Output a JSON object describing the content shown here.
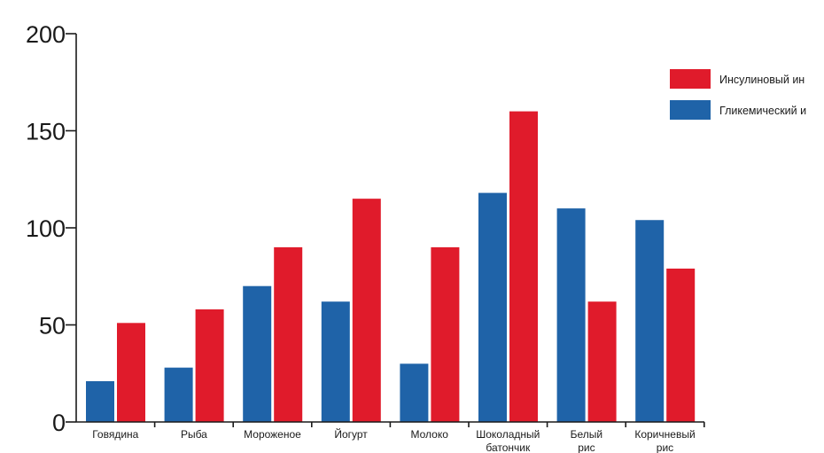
{
  "chart_data": {
    "type": "bar",
    "title": "",
    "xlabel": "",
    "ylabel": "",
    "ylim": [
      0,
      200
    ],
    "yticks": [
      0,
      50,
      100,
      150,
      200
    ],
    "grid": false,
    "legend_position": "top-right",
    "categories": [
      [
        "Говядина"
      ],
      [
        "Рыба"
      ],
      [
        "Мороженое"
      ],
      [
        "Йогурт"
      ],
      [
        "Молоко"
      ],
      [
        "Шоколадный",
        "батончик"
      ],
      [
        "Белый",
        "рис"
      ],
      [
        "Коричневый",
        "рис"
      ]
    ],
    "series": [
      {
        "name": "Гликемический и",
        "color": "#1f63a8",
        "values": [
          21,
          28,
          70,
          62,
          30,
          118,
          110,
          104
        ]
      },
      {
        "name": "Инсулиновый ин",
        "color": "#e01b2b",
        "values": [
          51,
          58,
          90,
          115,
          90,
          160,
          62,
          79
        ]
      }
    ],
    "legend": [
      {
        "label": "Инсулиновый ин",
        "color": "#e01b2b"
      },
      {
        "label": "Гликемический и",
        "color": "#1f63a8"
      }
    ]
  }
}
